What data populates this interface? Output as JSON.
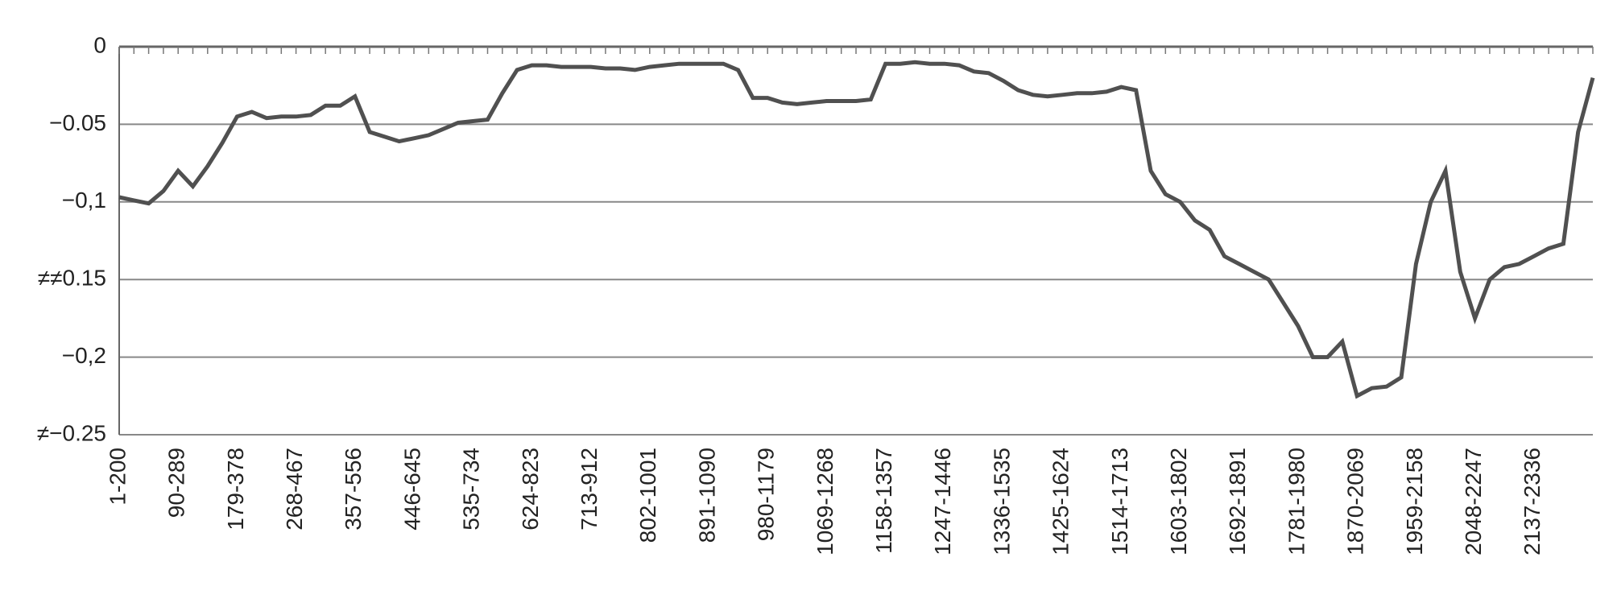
{
  "chart_data": {
    "type": "line",
    "categories": [
      "1-200",
      null,
      null,
      null,
      "90-289",
      null,
      null,
      null,
      "179-378",
      null,
      null,
      null,
      "268-467",
      null,
      null,
      null,
      "357-556",
      null,
      null,
      null,
      "446-645",
      null,
      null,
      null,
      "535-734",
      null,
      null,
      null,
      "624-823",
      null,
      null,
      null,
      "713-912",
      null,
      null,
      null,
      "802-1001",
      null,
      null,
      null,
      "891-1090",
      null,
      null,
      null,
      "980-1179",
      null,
      null,
      null,
      "1069-1268",
      null,
      null,
      null,
      "1158-1357",
      null,
      null,
      null,
      "1247-1446",
      null,
      null,
      null,
      "1336-1535",
      null,
      null,
      null,
      "1425-1624",
      null,
      null,
      null,
      "1514-1713",
      null,
      null,
      null,
      "1603-1802",
      null,
      null,
      null,
      "1692-1891",
      null,
      null,
      null,
      "1781-1980",
      null,
      null,
      null,
      "1870-2069",
      null,
      null,
      null,
      "1959-2158",
      null,
      null,
      null,
      "2048-2247",
      null,
      null,
      null,
      "2137-2336",
      null,
      null,
      null,
      null
    ],
    "series": [
      {
        "color": "#505050",
        "values": [
          -0.097,
          -0.099,
          -0.101,
          -0.093,
          -0.08,
          -0.09,
          -0.077,
          -0.062,
          -0.045,
          -0.042,
          -0.046,
          -0.045,
          -0.045,
          -0.044,
          -0.038,
          -0.038,
          -0.032,
          -0.055,
          -0.058,
          -0.061,
          -0.059,
          -0.057,
          -0.053,
          -0.049,
          -0.048,
          -0.047,
          -0.03,
          -0.015,
          -0.012,
          -0.012,
          -0.013,
          -0.013,
          -0.013,
          -0.014,
          -0.014,
          -0.015,
          -0.013,
          -0.012,
          -0.011,
          -0.011,
          -0.011,
          -0.011,
          -0.015,
          -0.033,
          -0.033,
          -0.036,
          -0.037,
          -0.036,
          -0.035,
          -0.035,
          -0.035,
          -0.034,
          -0.011,
          -0.011,
          -0.01,
          -0.011,
          -0.011,
          -0.012,
          -0.016,
          -0.017,
          -0.022,
          -0.028,
          -0.031,
          -0.032,
          -0.031,
          -0.03,
          -0.03,
          -0.029,
          -0.026,
          -0.028,
          -0.08,
          -0.095,
          -0.1,
          -0.112,
          -0.118,
          -0.135,
          -0.14,
          -0.145,
          -0.15,
          -0.165,
          -0.18,
          -0.2,
          -0.2,
          -0.19,
          -0.225,
          -0.22,
          -0.219,
          -0.213,
          -0.14,
          -0.1,
          -0.08,
          -0.145,
          -0.175,
          -0.15,
          -0.142,
          -0.14,
          -0.135,
          -0.13,
          -0.127,
          -0.055,
          -0.02
        ]
      }
    ],
    "ylim": [
      -0.25,
      0
    ],
    "yticks": [
      0,
      {
        "value": -0.05,
        "label": "−0.05"
      },
      {
        "value": -0.1,
        "label": "−0,1"
      },
      {
        "value": -0.15,
        "label": "≠≠0.15"
      },
      {
        "value": -0.2,
        "label": "−0,2"
      },
      {
        "value": -0.25,
        "label": "≠−0.25"
      }
    ],
    "grid": true
  }
}
